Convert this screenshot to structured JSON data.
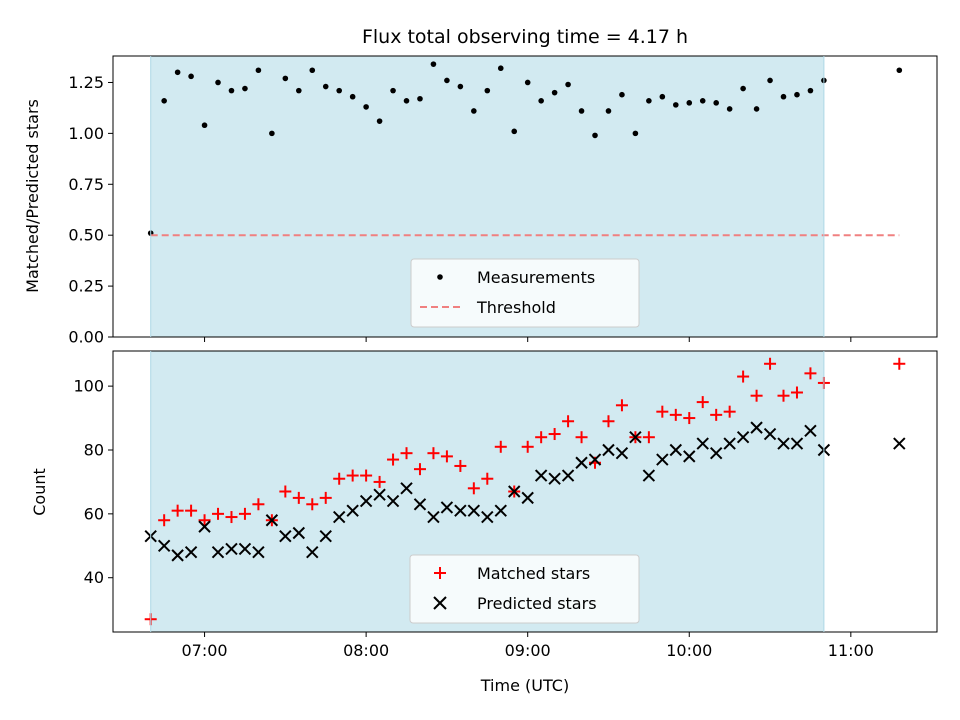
{
  "chart_data": [
    {
      "type": "scatter",
      "title": "Flux total observing time = 4.17 h",
      "xlabel": "",
      "ylabel": "Matched/Predicted stars",
      "xlim": [
        "06:26",
        "11:32"
      ],
      "ylim": [
        0,
        1.38
      ],
      "yticks": [
        "0.00",
        "0.25",
        "0.50",
        "0.75",
        "1.00",
        "1.25"
      ],
      "ytick_values": [
        0,
        0.25,
        0.5,
        0.75,
        1.0,
        1.25
      ],
      "grid": false,
      "shaded_x_range": [
        "06:40",
        "10:50"
      ],
      "shade_color": "#add8e6",
      "legend_position": "lower center",
      "series": [
        {
          "name": "Measurements",
          "kind": "points",
          "color": "#000000",
          "x": [
            "06:40",
            "06:45",
            "06:50",
            "06:55",
            "07:00",
            "07:05",
            "07:10",
            "07:15",
            "07:20",
            "07:25",
            "07:30",
            "07:35",
            "07:40",
            "07:45",
            "07:50",
            "07:55",
            "08:00",
            "08:05",
            "08:10",
            "08:15",
            "08:20",
            "08:25",
            "08:30",
            "08:35",
            "08:40",
            "08:45",
            "08:50",
            "08:55",
            "09:00",
            "09:05",
            "09:10",
            "09:15",
            "09:20",
            "09:25",
            "09:30",
            "09:35",
            "09:40",
            "09:45",
            "09:50",
            "09:55",
            "10:00",
            "10:05",
            "10:10",
            "10:15",
            "10:20",
            "10:25",
            "10:30",
            "10:35",
            "10:40",
            "10:45",
            "10:50",
            "11:18"
          ],
          "y": [
            0.51,
            1.16,
            1.3,
            1.28,
            1.04,
            1.25,
            1.21,
            1.22,
            1.31,
            1.0,
            1.27,
            1.21,
            1.31,
            1.23,
            1.21,
            1.18,
            1.13,
            1.06,
            1.21,
            1.16,
            1.17,
            1.34,
            1.26,
            1.23,
            1.11,
            1.21,
            1.32,
            1.01,
            1.25,
            1.16,
            1.2,
            1.24,
            1.11,
            0.99,
            1.11,
            1.19,
            1.0,
            1.16,
            1.18,
            1.14,
            1.15,
            1.16,
            1.15,
            1.12,
            1.22,
            1.12,
            1.26,
            1.18,
            1.19,
            1.21,
            1.26,
            1.31
          ]
        },
        {
          "name": "Threshold",
          "kind": "dashed-line",
          "color": "#f08080",
          "x": [
            "06:40",
            "11:18"
          ],
          "y": [
            0.5,
            0.5
          ]
        }
      ]
    },
    {
      "type": "scatter",
      "title": "",
      "xlabel": "Time (UTC)",
      "ylabel": "Count",
      "xlim": [
        "06:26",
        "11:32"
      ],
      "xticks": [
        "07:00",
        "08:00",
        "09:00",
        "10:00",
        "11:00"
      ],
      "ylim": [
        23,
        111
      ],
      "yticks": [
        "40",
        "60",
        "80",
        "100"
      ],
      "ytick_values": [
        40,
        60,
        80,
        100
      ],
      "grid": false,
      "shaded_x_range": [
        "06:40",
        "10:50"
      ],
      "shade_color": "#add8e6",
      "legend_position": "lower center",
      "series": [
        {
          "name": "Matched stars",
          "marker": "plus",
          "color": "#ff0000",
          "x": [
            "06:40",
            "06:45",
            "06:50",
            "06:55",
            "07:00",
            "07:05",
            "07:10",
            "07:15",
            "07:20",
            "07:25",
            "07:30",
            "07:35",
            "07:40",
            "07:45",
            "07:50",
            "07:55",
            "08:00",
            "08:05",
            "08:10",
            "08:15",
            "08:20",
            "08:25",
            "08:30",
            "08:35",
            "08:40",
            "08:45",
            "08:50",
            "08:55",
            "09:00",
            "09:05",
            "09:10",
            "09:15",
            "09:20",
            "09:25",
            "09:30",
            "09:35",
            "09:40",
            "09:45",
            "09:50",
            "09:55",
            "10:00",
            "10:05",
            "10:10",
            "10:15",
            "10:20",
            "10:25",
            "10:30",
            "10:35",
            "10:40",
            "10:45",
            "10:50",
            "11:18"
          ],
          "y": [
            27,
            58,
            61,
            61,
            58,
            60,
            59,
            60,
            63,
            58,
            67,
            65,
            63,
            65,
            71,
            72,
            72,
            70,
            77,
            79,
            74,
            79,
            78,
            75,
            68,
            71,
            81,
            67,
            81,
            84,
            85,
            89,
            84,
            76,
            89,
            94,
            84,
            84,
            92,
            91,
            90,
            95,
            91,
            92,
            103,
            97,
            107,
            97,
            98,
            104,
            101,
            107
          ]
        },
        {
          "name": "Predicted stars",
          "marker": "x",
          "color": "#000000",
          "x": [
            "06:40",
            "06:45",
            "06:50",
            "06:55",
            "07:00",
            "07:05",
            "07:10",
            "07:15",
            "07:20",
            "07:25",
            "07:30",
            "07:35",
            "07:40",
            "07:45",
            "07:50",
            "07:55",
            "08:00",
            "08:05",
            "08:10",
            "08:15",
            "08:20",
            "08:25",
            "08:30",
            "08:35",
            "08:40",
            "08:45",
            "08:50",
            "08:55",
            "09:00",
            "09:05",
            "09:10",
            "09:15",
            "09:20",
            "09:25",
            "09:30",
            "09:35",
            "09:40",
            "09:45",
            "09:50",
            "09:55",
            "10:00",
            "10:05",
            "10:10",
            "10:15",
            "10:20",
            "10:25",
            "10:30",
            "10:35",
            "10:40",
            "10:45",
            "10:50",
            "11:18"
          ],
          "y": [
            53,
            50,
            47,
            48,
            56,
            48,
            49,
            49,
            48,
            58,
            53,
            54,
            48,
            53,
            59,
            61,
            64,
            66,
            64,
            68,
            63,
            59,
            62,
            61,
            61,
            59,
            61,
            67,
            65,
            72,
            71,
            72,
            76,
            77,
            80,
            79,
            84,
            72,
            77,
            80,
            78,
            82,
            79,
            82,
            84,
            87,
            85,
            82,
            82,
            86,
            80,
            82
          ]
        }
      ]
    }
  ]
}
